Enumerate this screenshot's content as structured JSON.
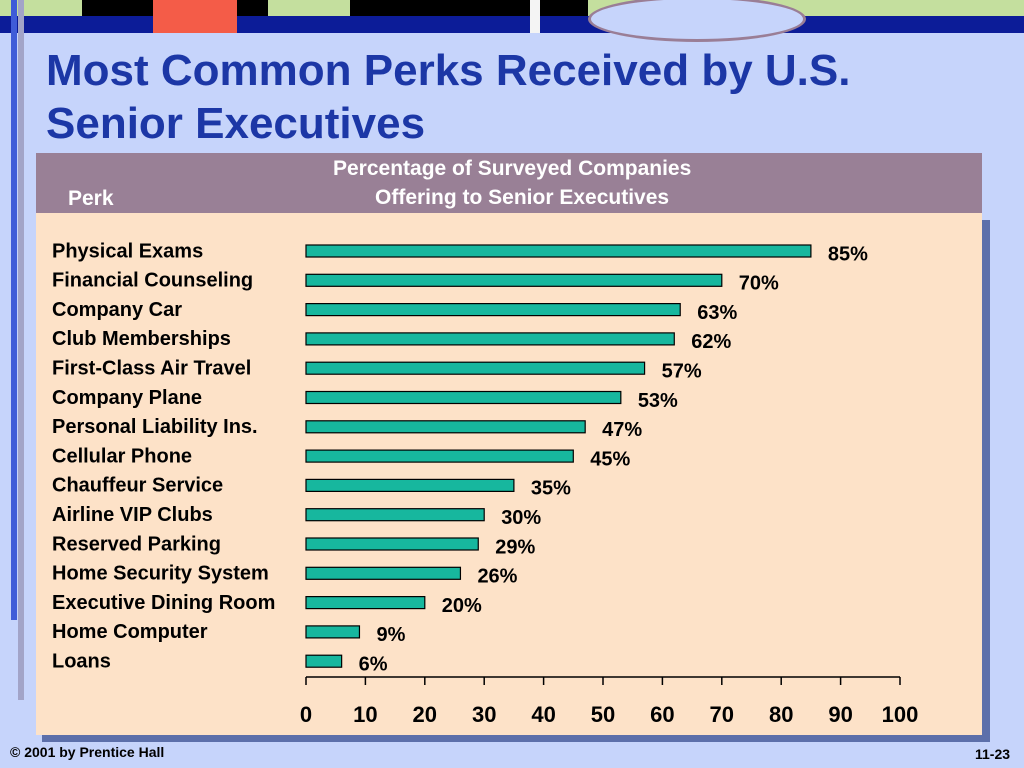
{
  "slide": {
    "title": "Most Common Perks Received by U.S. Senior Executives",
    "column_header_perk": "Perk",
    "column_header_pct_line1": "Percentage of Surveyed Companies",
    "column_header_pct_line2": "Offering to Senior Executives",
    "footer_left": "© 2001 by Prentice Hall",
    "footer_right": "11-23"
  },
  "colors": {
    "title": "#1c37a6",
    "bar_fill": "#17b79e",
    "panel": "#fde2c8",
    "header_band": "#998096",
    "background": "#c6d4fb"
  },
  "chart_data": {
    "type": "bar",
    "orientation": "horizontal",
    "categories": [
      "Physical Exams",
      "Financial Counseling",
      "Company Car",
      "Club Memberships",
      "First-Class Air Travel",
      "Company Plane",
      "Personal Liability Ins.",
      "Cellular Phone",
      "Chauffeur Service",
      "Airline VIP Clubs",
      "Reserved Parking",
      "Home Security System",
      "Executive Dining Room",
      "Home Computer",
      "Loans"
    ],
    "values": [
      85,
      70,
      63,
      62,
      57,
      53,
      47,
      45,
      35,
      30,
      29,
      26,
      20,
      9,
      6
    ],
    "value_labels": [
      "85%",
      "70%",
      "63%",
      "62%",
      "57%",
      "53%",
      "47%",
      "45%",
      "35%",
      "30%",
      "29%",
      "26%",
      "20%",
      "9%",
      "6%"
    ],
    "xlim": [
      0,
      100
    ],
    "xticks": [
      0,
      10,
      20,
      30,
      40,
      50,
      60,
      70,
      80,
      90,
      100
    ],
    "grid": false,
    "legend": "none"
  }
}
